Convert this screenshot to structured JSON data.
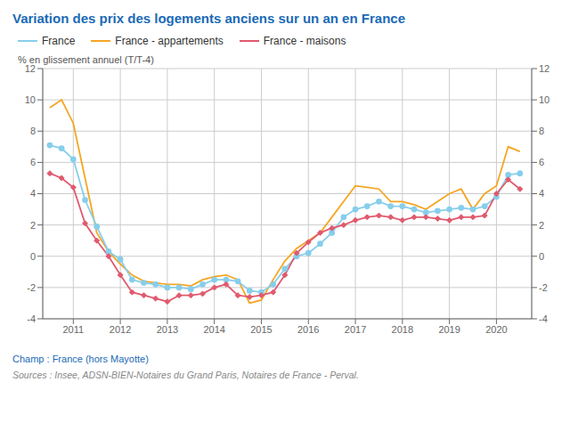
{
  "chart_data": {
    "type": "line",
    "title": "Variation des prix des logements anciens sur un an en France",
    "ylabel": "% en glissement annuel (T/T-4)",
    "annotations": [
      "Champ : France (hors Mayotte)",
      "Sources : Insee, ADSN-BIEN-Notaires du Grand Paris, Notaires de France - Perval."
    ],
    "x": [
      2010.5,
      2010.75,
      2011.0,
      2011.25,
      2011.5,
      2011.75,
      2012.0,
      2012.25,
      2012.5,
      2012.75,
      2013.0,
      2013.25,
      2013.5,
      2013.75,
      2014.0,
      2014.25,
      2014.5,
      2014.75,
      2015.0,
      2015.25,
      2015.5,
      2015.75,
      2016.0,
      2016.25,
      2016.5,
      2016.75,
      2017.0,
      2017.25,
      2017.5,
      2017.75,
      2018.0,
      2018.25,
      2018.5,
      2018.75,
      2019.0,
      2019.25,
      2019.5,
      2019.75,
      2020.0,
      2020.25,
      2020.5
    ],
    "series": [
      {
        "name": "France - appartements",
        "color": "#f5a623",
        "marker": "none",
        "values": [
          9.5,
          10.0,
          8.5,
          5.0,
          1.5,
          0.3,
          -0.5,
          -1.2,
          -1.6,
          -1.7,
          -1.8,
          -1.8,
          -1.9,
          -1.5,
          -1.3,
          -1.2,
          -1.5,
          -3.0,
          -2.8,
          -1.5,
          -0.3,
          0.5,
          1.0,
          1.5,
          2.5,
          3.5,
          4.5,
          4.4,
          4.3,
          3.5,
          3.5,
          3.3,
          3.0,
          3.5,
          4.0,
          4.3,
          3.0,
          4.0,
          4.5,
          7.0,
          6.7
        ]
      },
      {
        "name": "France",
        "color": "#87ceeb",
        "marker": "circle",
        "values": [
          7.1,
          6.9,
          6.2,
          3.6,
          1.9,
          0.3,
          -0.2,
          -1.5,
          -1.7,
          -1.8,
          -2.0,
          -2.0,
          -2.1,
          -1.8,
          -1.5,
          -1.5,
          -1.6,
          -2.2,
          -2.3,
          -1.8,
          -0.8,
          0.0,
          0.2,
          0.8,
          1.5,
          2.5,
          3.0,
          3.2,
          3.5,
          3.2,
          3.2,
          3.0,
          2.8,
          2.9,
          3.0,
          3.1,
          3.0,
          3.2,
          3.8,
          5.2,
          5.3
        ]
      },
      {
        "name": "France - maisons",
        "color": "#e05a6e",
        "marker": "diamond",
        "values": [
          5.3,
          5.0,
          4.4,
          2.1,
          1.0,
          0.0,
          -1.2,
          -2.3,
          -2.5,
          -2.7,
          -2.9,
          -2.5,
          -2.5,
          -2.4,
          -2.0,
          -1.8,
          -2.5,
          -2.6,
          -2.5,
          -2.3,
          -1.2,
          0.2,
          0.9,
          1.5,
          1.8,
          2.0,
          2.3,
          2.5,
          2.6,
          2.5,
          2.3,
          2.5,
          2.5,
          2.4,
          2.3,
          2.5,
          2.5,
          2.6,
          4.0,
          4.9,
          4.3
        ]
      }
    ],
    "xlim": [
      2010.35,
      2020.75
    ],
    "xticks": [
      2011,
      2012,
      2013,
      2014,
      2015,
      2016,
      2017,
      2018,
      2019,
      2020
    ],
    "ylim": [
      -4,
      12
    ],
    "yticks": [
      -4,
      -2,
      0,
      2,
      4,
      6,
      8,
      10,
      12
    ],
    "y2lim": [
      -4,
      12
    ],
    "y2ticks": [
      -4,
      -2,
      0,
      2,
      4,
      6,
      8,
      10,
      12
    ],
    "grid": true,
    "legend": "top"
  }
}
